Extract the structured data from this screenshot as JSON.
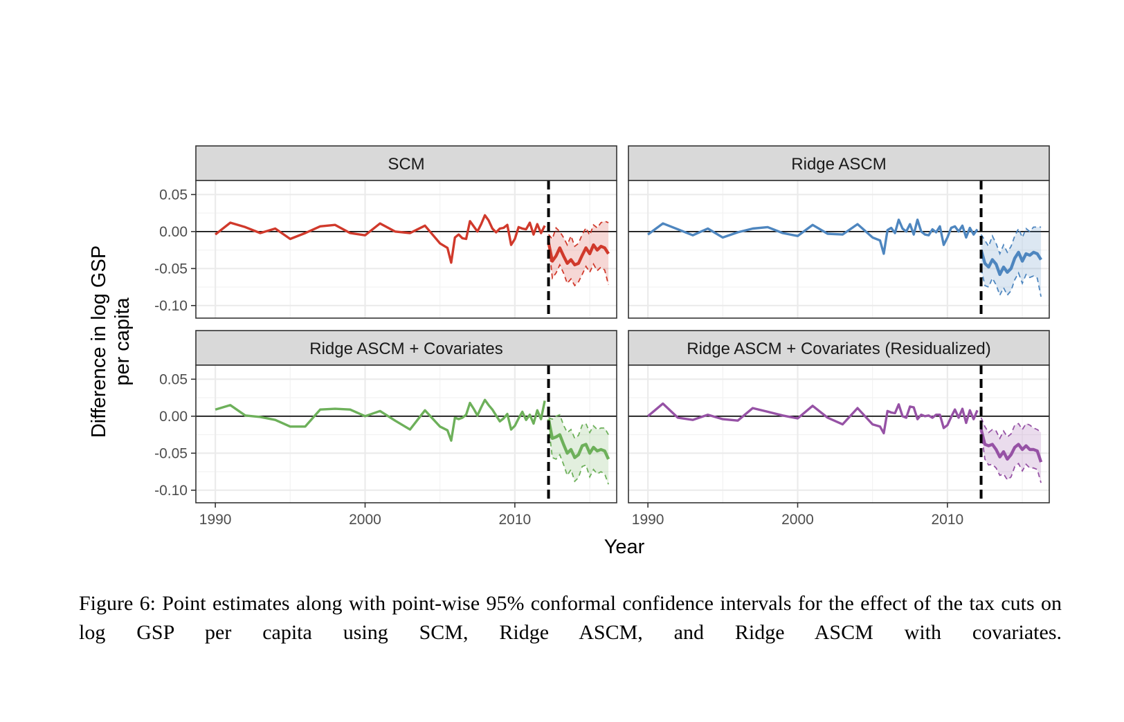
{
  "caption": "Figure 6: Point estimates along with point-wise 95% conformal confidence intervals for the effect of the tax cuts on log GSP per capita using SCM, Ridge ASCM, and Ridge ASCM with covariates.",
  "chart_data": {
    "type": "line",
    "xlabel": "Year",
    "ylabel": "Difference in log GSP per capita",
    "xlim": [
      1988.7,
      2016.8
    ],
    "ylim": [
      -0.117,
      0.069
    ],
    "x_ticks": [
      "1990",
      "2000",
      "2010"
    ],
    "y_ticks": [
      "0.05",
      "0.00",
      "-0.05",
      "-0.10"
    ],
    "y_tick_values": [
      0.05,
      0.0,
      -0.05,
      -0.1
    ],
    "grid": true,
    "reference_line_y": 0.0,
    "treatment_x": 2012.25,
    "panels": [
      {
        "title": "SCM",
        "color": "#d0392b",
        "pre": {
          "x": [
            1990.0,
            1991.0,
            1992.0,
            1993.0,
            1994.0,
            1995.0,
            1996.0,
            1997.0,
            1998.0,
            1999.0,
            2000.0,
            2001.0,
            2002.0,
            2003.0,
            2004.0,
            2005.0,
            2005.5,
            2005.75,
            2006.0,
            2006.25,
            2006.5,
            2006.75,
            2007.0,
            2007.25,
            2007.5,
            2007.75,
            2008.0,
            2008.25,
            2008.5,
            2008.75,
            2009.0,
            2009.25,
            2009.5,
            2009.75,
            2010.0,
            2010.25,
            2010.5,
            2010.75,
            2011.0,
            2011.25,
            2011.5,
            2011.75,
            2012.0
          ],
          "y": [
            -0.004,
            0.012,
            0.006,
            -0.002,
            0.004,
            -0.01,
            -0.002,
            0.007,
            0.009,
            -0.002,
            -0.005,
            0.011,
            0.0,
            -0.002,
            0.008,
            -0.016,
            -0.022,
            -0.042,
            -0.008,
            -0.004,
            -0.009,
            -0.01,
            0.014,
            0.007,
            0.0,
            0.01,
            0.022,
            0.015,
            0.004,
            -0.001,
            0.004,
            0.005,
            0.009,
            -0.018,
            -0.01,
            0.006,
            0.004,
            0.003,
            0.012,
            -0.004,
            0.01,
            -0.002,
            0.008
          ]
        },
        "post": {
          "x": [
            2012.25,
            2012.5,
            2012.75,
            2013.0,
            2013.25,
            2013.5,
            2013.75,
            2014.0,
            2014.25,
            2014.5,
            2014.75,
            2015.0,
            2015.25,
            2015.5,
            2015.75,
            2016.0,
            2016.25
          ],
          "estimate": [
            -0.015,
            -0.04,
            -0.033,
            -0.022,
            -0.033,
            -0.043,
            -0.038,
            -0.045,
            -0.043,
            -0.032,
            -0.022,
            -0.03,
            -0.018,
            -0.025,
            -0.02,
            -0.022,
            -0.03
          ],
          "lower": [
            -0.012,
            -0.063,
            -0.056,
            -0.045,
            -0.056,
            -0.07,
            -0.064,
            -0.073,
            -0.068,
            -0.058,
            -0.047,
            -0.055,
            -0.044,
            -0.053,
            -0.048,
            -0.052,
            -0.072
          ],
          "upper": [
            -0.004,
            -0.01,
            0.005,
            0.0,
            -0.008,
            -0.018,
            -0.006,
            -0.02,
            -0.016,
            -0.004,
            0.005,
            -0.005,
            0.009,
            0.005,
            0.012,
            0.014,
            0.012
          ]
        }
      },
      {
        "title": "Ridge ASCM",
        "color": "#4e86bf",
        "pre": {
          "x": [
            1990.0,
            1991.0,
            1992.0,
            1993.0,
            1994.0,
            1995.0,
            1996.0,
            1997.0,
            1998.0,
            1999.0,
            2000.0,
            2001.0,
            2002.0,
            2003.0,
            2004.0,
            2005.0,
            2005.5,
            2005.75,
            2006.0,
            2006.25,
            2006.5,
            2006.75,
            2007.0,
            2007.25,
            2007.5,
            2007.75,
            2008.0,
            2008.25,
            2008.5,
            2008.75,
            2009.0,
            2009.25,
            2009.5,
            2009.75,
            2010.0,
            2010.25,
            2010.5,
            2010.75,
            2011.0,
            2011.25,
            2011.5,
            2011.75,
            2012.0
          ],
          "y": [
            -0.004,
            0.011,
            0.003,
            -0.005,
            0.004,
            -0.008,
            -0.001,
            0.004,
            0.006,
            -0.002,
            -0.006,
            0.009,
            -0.003,
            -0.004,
            0.01,
            -0.008,
            -0.012,
            -0.03,
            0.002,
            0.005,
            -0.002,
            0.016,
            0.004,
            0.0,
            0.01,
            -0.004,
            0.016,
            0.0,
            -0.004,
            -0.005,
            0.003,
            -0.001,
            0.007,
            -0.018,
            -0.008,
            0.005,
            0.007,
            0.0,
            0.008,
            -0.008,
            0.005,
            -0.004,
            0.003
          ]
        },
        "post": {
          "x": [
            2012.25,
            2012.5,
            2012.75,
            2013.0,
            2013.25,
            2013.5,
            2013.75,
            2014.0,
            2014.25,
            2014.5,
            2014.75,
            2015.0,
            2015.25,
            2015.5,
            2015.75,
            2016.0,
            2016.25
          ],
          "estimate": [
            -0.025,
            -0.043,
            -0.048,
            -0.038,
            -0.044,
            -0.058,
            -0.048,
            -0.055,
            -0.05,
            -0.036,
            -0.028,
            -0.04,
            -0.03,
            -0.032,
            -0.028,
            -0.03,
            -0.038
          ],
          "lower": [
            -0.05,
            -0.073,
            -0.075,
            -0.063,
            -0.072,
            -0.086,
            -0.076,
            -0.086,
            -0.08,
            -0.065,
            -0.056,
            -0.07,
            -0.058,
            -0.062,
            -0.06,
            -0.063,
            -0.088
          ],
          "upper": [
            -0.004,
            -0.012,
            -0.02,
            -0.006,
            -0.016,
            -0.03,
            -0.018,
            -0.028,
            -0.02,
            -0.006,
            0.004,
            -0.008,
            0.004,
            0.0,
            0.006,
            0.006,
            0.006
          ]
        }
      },
      {
        "title": "Ridge ASCM + Covariates",
        "color": "#6db05a",
        "pre": {
          "x": [
            1990.0,
            1991.0,
            1992.0,
            1993.0,
            1994.0,
            1995.0,
            1996.0,
            1997.0,
            1998.0,
            1999.0,
            2000.0,
            2001.0,
            2002.0,
            2003.0,
            2004.0,
            2005.0,
            2005.5,
            2005.75,
            2006.0,
            2006.25,
            2006.5,
            2006.75,
            2007.0,
            2007.25,
            2007.5,
            2007.75,
            2008.0,
            2008.25,
            2008.5,
            2008.75,
            2009.0,
            2009.25,
            2009.5,
            2009.75,
            2010.0,
            2010.25,
            2010.5,
            2010.75,
            2011.0,
            2011.25,
            2011.5,
            2011.75,
            2012.0
          ],
          "y": [
            0.009,
            0.015,
            0.001,
            -0.001,
            -0.005,
            -0.014,
            -0.014,
            0.009,
            0.01,
            0.009,
            0.0,
            0.007,
            -0.006,
            -0.018,
            0.008,
            -0.014,
            -0.019,
            -0.033,
            -0.002,
            -0.004,
            -0.002,
            0.002,
            0.018,
            0.01,
            0.001,
            0.012,
            0.022,
            0.015,
            0.009,
            0.001,
            -0.007,
            -0.003,
            0.003,
            -0.018,
            -0.013,
            -0.003,
            0.006,
            -0.005,
            0.002,
            -0.01,
            0.008,
            -0.004,
            0.021
          ]
        },
        "post": {
          "x": [
            2012.25,
            2012.5,
            2012.75,
            2013.0,
            2013.25,
            2013.5,
            2013.75,
            2014.0,
            2014.25,
            2014.5,
            2014.75,
            2015.0,
            2015.25,
            2015.5,
            2015.75,
            2016.0,
            2016.25
          ],
          "estimate": [
            -0.004,
            -0.03,
            -0.028,
            -0.025,
            -0.038,
            -0.05,
            -0.045,
            -0.056,
            -0.052,
            -0.04,
            -0.038,
            -0.05,
            -0.042,
            -0.047,
            -0.045,
            -0.047,
            -0.058
          ],
          "lower": [
            -0.012,
            -0.056,
            -0.058,
            -0.052,
            -0.065,
            -0.08,
            -0.072,
            -0.088,
            -0.083,
            -0.068,
            -0.066,
            -0.082,
            -0.072,
            -0.078,
            -0.075,
            -0.078,
            -0.092
          ],
          "upper": [
            -0.002,
            -0.004,
            0.0,
            0.002,
            -0.012,
            -0.022,
            -0.018,
            -0.03,
            -0.026,
            -0.012,
            -0.01,
            -0.022,
            -0.013,
            -0.018,
            -0.016,
            -0.016,
            -0.025
          ]
        }
      },
      {
        "title": "Ridge ASCM + Covariates (Residualized)",
        "color": "#9652a5",
        "pre": {
          "x": [
            1990.0,
            1991.0,
            1992.0,
            1993.0,
            1994.0,
            1995.0,
            1996.0,
            1997.0,
            1998.0,
            1999.0,
            2000.0,
            2001.0,
            2002.0,
            2003.0,
            2004.0,
            2005.0,
            2005.5,
            2005.75,
            2006.0,
            2006.25,
            2006.5,
            2006.75,
            2007.0,
            2007.25,
            2007.5,
            2007.75,
            2008.0,
            2008.25,
            2008.5,
            2008.75,
            2009.0,
            2009.25,
            2009.5,
            2009.75,
            2010.0,
            2010.25,
            2010.5,
            2010.75,
            2011.0,
            2011.25,
            2011.5,
            2011.75,
            2012.0
          ],
          "y": [
            0.0,
            0.017,
            -0.002,
            -0.005,
            0.002,
            -0.004,
            -0.006,
            0.011,
            0.006,
            0.001,
            -0.003,
            0.014,
            -0.002,
            -0.011,
            0.011,
            -0.011,
            -0.014,
            -0.023,
            0.007,
            0.005,
            0.004,
            0.016,
            0.0,
            -0.002,
            0.013,
            0.012,
            -0.004,
            0.002,
            0.0,
            0.001,
            -0.002,
            0.002,
            0.002,
            -0.016,
            -0.012,
            -0.001,
            0.009,
            -0.002,
            0.01,
            -0.009,
            0.008,
            -0.004,
            0.008
          ]
        },
        "post": {
          "x": [
            2012.25,
            2012.5,
            2012.75,
            2013.0,
            2013.25,
            2013.5,
            2013.75,
            2014.0,
            2014.25,
            2014.5,
            2014.75,
            2015.0,
            2015.25,
            2015.5,
            2015.75,
            2016.0,
            2016.25
          ],
          "estimate": [
            -0.018,
            -0.038,
            -0.04,
            -0.038,
            -0.045,
            -0.055,
            -0.048,
            -0.058,
            -0.052,
            -0.042,
            -0.038,
            -0.045,
            -0.04,
            -0.045,
            -0.045,
            -0.047,
            -0.062
          ],
          "lower": [
            -0.02,
            -0.058,
            -0.066,
            -0.065,
            -0.07,
            -0.08,
            -0.078,
            -0.086,
            -0.082,
            -0.068,
            -0.064,
            -0.074,
            -0.065,
            -0.07,
            -0.07,
            -0.072,
            -0.09
          ],
          "upper": [
            -0.002,
            -0.014,
            -0.022,
            -0.018,
            -0.02,
            -0.03,
            -0.02,
            -0.028,
            -0.024,
            -0.012,
            -0.01,
            -0.018,
            -0.01,
            -0.012,
            -0.016,
            -0.018,
            -0.022
          ]
        }
      }
    ]
  }
}
